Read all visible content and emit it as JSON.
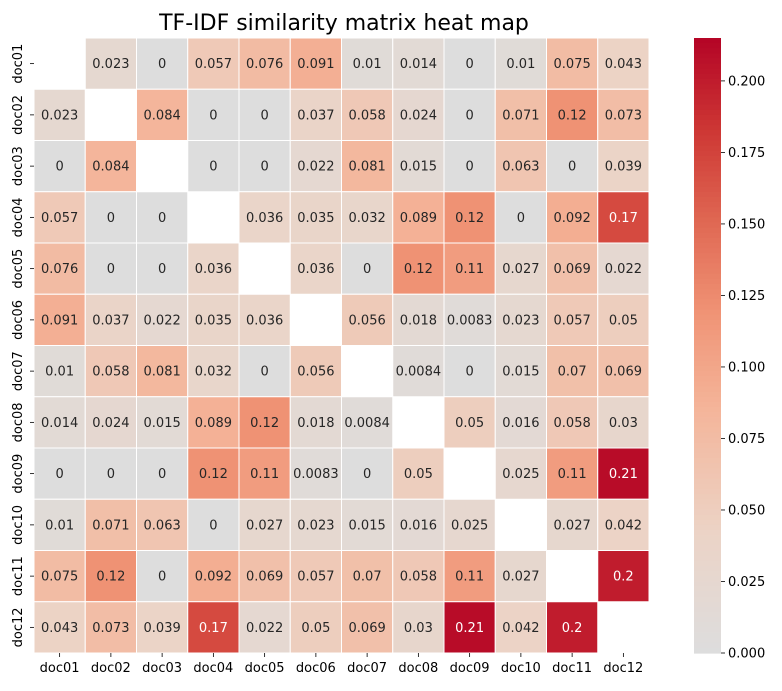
{
  "chart_data": {
    "type": "heatmap",
    "title": "TF-IDF similarity matrix heat map",
    "xlabel": "",
    "ylabel": "",
    "categories": [
      "doc01",
      "doc02",
      "doc03",
      "doc04",
      "doc05",
      "doc06",
      "doc07",
      "doc08",
      "doc09",
      "doc10",
      "doc11",
      "doc12"
    ],
    "matrix": [
      [
        null,
        0.023,
        0,
        0.057,
        0.076,
        0.091,
        0.01,
        0.014,
        0,
        0.01,
        0.075,
        0.043
      ],
      [
        0.023,
        null,
        0.084,
        0,
        0,
        0.037,
        0.058,
        0.024,
        0,
        0.071,
        0.12,
        0.073
      ],
      [
        0,
        0.084,
        null,
        0,
        0,
        0.022,
        0.081,
        0.015,
        0,
        0.063,
        0,
        0.039
      ],
      [
        0.057,
        0,
        0,
        null,
        0.036,
        0.035,
        0.032,
        0.089,
        0.12,
        0,
        0.092,
        0.17
      ],
      [
        0.076,
        0,
        0,
        0.036,
        null,
        0.036,
        0,
        0.12,
        0.11,
        0.027,
        0.069,
        0.022
      ],
      [
        0.091,
        0.037,
        0.022,
        0.035,
        0.036,
        null,
        0.056,
        0.018,
        0.0083,
        0.023,
        0.057,
        0.05
      ],
      [
        0.01,
        0.058,
        0.081,
        0.032,
        0,
        0.056,
        null,
        0.0084,
        0,
        0.015,
        0.07,
        0.069
      ],
      [
        0.014,
        0.024,
        0.015,
        0.089,
        0.12,
        0.018,
        0.0084,
        null,
        0.05,
        0.016,
        0.058,
        0.03
      ],
      [
        0,
        0,
        0,
        0.12,
        0.11,
        0.0083,
        0,
        0.05,
        null,
        0.025,
        0.11,
        0.21
      ],
      [
        0.01,
        0.071,
        0.063,
        0,
        0.027,
        0.023,
        0.015,
        0.016,
        0.025,
        null,
        0.027,
        0.042
      ],
      [
        0.075,
        0.12,
        0,
        0.092,
        0.069,
        0.057,
        0.07,
        0.058,
        0.11,
        0.027,
        null,
        0.2
      ],
      [
        0.043,
        0.073,
        0.039,
        0.17,
        0.022,
        0.05,
        0.069,
        0.03,
        0.21,
        0.042,
        0.2,
        null
      ]
    ],
    "vmin": 0,
    "vmax": 0.215,
    "colormap": "coolwarm",
    "colorbar_ticks": [
      0.0,
      0.025,
      0.05,
      0.075,
      0.1,
      0.125,
      0.15,
      0.175,
      0.2
    ],
    "colorbar_tick_labels": [
      "0.000",
      "0.025",
      "0.050",
      "0.075",
      "0.100",
      "0.125",
      "0.150",
      "0.175",
      "0.200"
    ],
    "grid": false,
    "diagonal_masked": true
  }
}
